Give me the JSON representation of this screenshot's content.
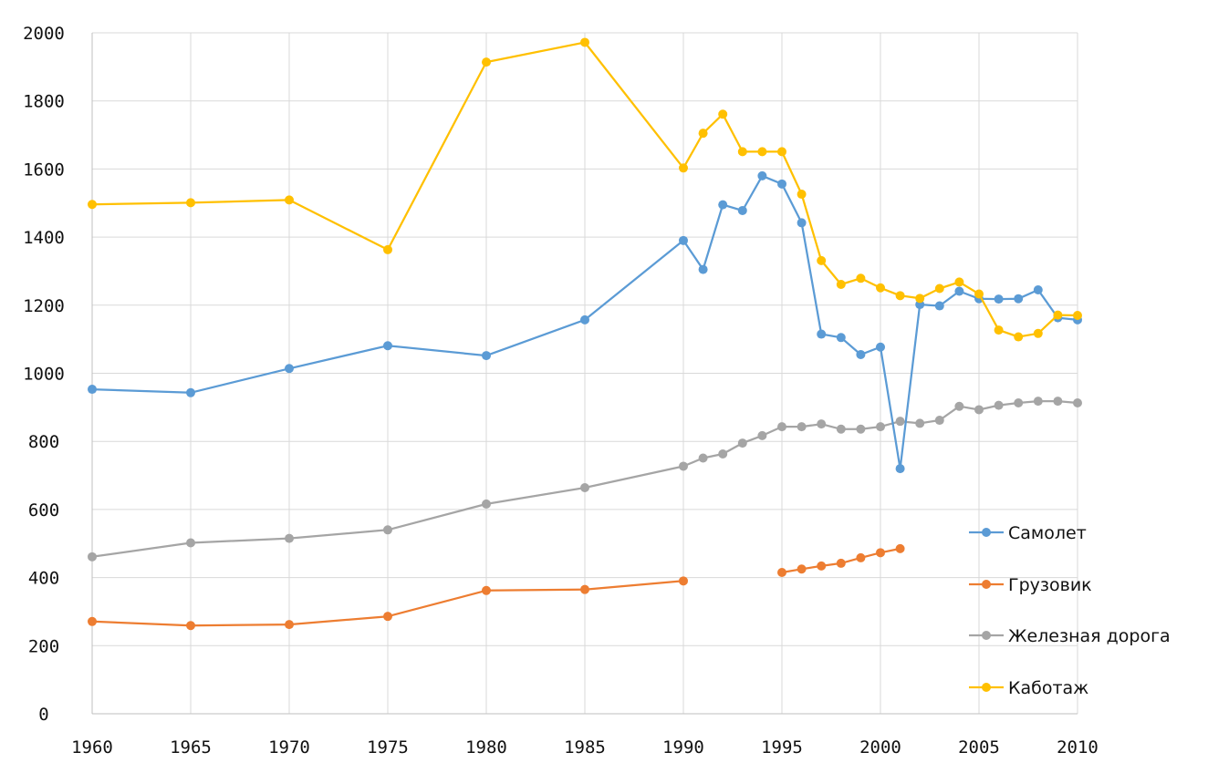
{
  "chart_data": {
    "type": "line",
    "title": "",
    "xlabel": "",
    "ylabel": "",
    "xlim": [
      1960,
      2010
    ],
    "ylim": [
      0,
      2000
    ],
    "x_ticks": [
      "1960",
      "1965",
      "1970",
      "1975",
      "1980",
      "1985",
      "1990",
      "1995",
      "2000",
      "2005",
      "2010"
    ],
    "y_ticks": [
      "0",
      "200",
      "400",
      "600",
      "800",
      "1000",
      "1200",
      "1400",
      "1600",
      "1800",
      "2000"
    ],
    "grid": true,
    "legend_position": "right",
    "series": [
      {
        "name": "Самолет",
        "color": "#5b9bd5",
        "x": [
          1960,
          1965,
          1970,
          1975,
          1980,
          1985,
          1990,
          1991,
          1992,
          1993,
          1994,
          1995,
          1996,
          1997,
          1998,
          1999,
          2000,
          2001,
          2002,
          2003,
          2004,
          2005,
          2006,
          2007,
          2008,
          2009,
          2010
        ],
        "values": [
          953,
          943,
          1014,
          1081,
          1052,
          1157,
          1390,
          1305,
          1495,
          1478,
          1580,
          1556,
          1442,
          1115,
          1105,
          1055,
          1077,
          720,
          1202,
          1198,
          1241,
          1219,
          1218,
          1219,
          1245,
          1163,
          1157
        ]
      },
      {
        "name": "Грузовик",
        "color": "#ed7d31",
        "x": [
          1960,
          1965,
          1970,
          1975,
          1980,
          1985,
          1990,
          1991,
          1992,
          1993,
          1994,
          1995,
          1996,
          1997,
          1998,
          1999,
          2000,
          2001,
          2002,
          2003,
          2004,
          2005,
          2006,
          2007,
          2008,
          2009,
          2010
        ],
        "values": [
          271,
          259,
          262,
          286,
          362,
          365,
          390,
          null,
          null,
          null,
          null,
          415,
          425,
          434,
          442,
          458,
          473,
          485,
          null,
          null,
          null,
          null,
          null,
          null,
          null,
          null,
          null
        ]
      },
      {
        "name": "Железная дорога",
        "color": "#a5a5a5",
        "x": [
          1960,
          1965,
          1970,
          1975,
          1980,
          1985,
          1990,
          1991,
          1992,
          1993,
          1994,
          1995,
          1996,
          1997,
          1998,
          1999,
          2000,
          2001,
          2002,
          2003,
          2004,
          2005,
          2006,
          2007,
          2008,
          2009,
          2010
        ],
        "values": [
          461,
          502,
          515,
          540,
          616,
          664,
          727,
          751,
          763,
          795,
          817,
          843,
          843,
          851,
          836,
          836,
          843,
          859,
          853,
          862,
          903,
          893,
          906,
          913,
          918,
          918,
          913
        ]
      },
      {
        "name": "Каботаж",
        "color": "#ffc000",
        "x": [
          1960,
          1965,
          1970,
          1975,
          1980,
          1985,
          1990,
          1991,
          1992,
          1993,
          1994,
          1995,
          1996,
          1997,
          1998,
          1999,
          2000,
          2001,
          2002,
          2003,
          2004,
          2005,
          2006,
          2007,
          2008,
          2009,
          2010
        ],
        "values": [
          1496,
          1501,
          1509,
          1363,
          1914,
          1972,
          1603,
          1705,
          1761,
          1651,
          1651,
          1651,
          1526,
          1331,
          1261,
          1279,
          1251,
          1228,
          1220,
          1249,
          1268,
          1233,
          1127,
          1107,
          1117,
          1171,
          1170
        ]
      }
    ]
  }
}
